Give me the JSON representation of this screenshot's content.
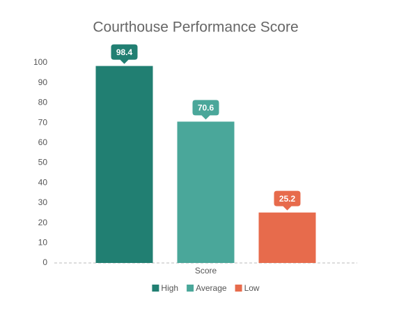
{
  "chart_data": {
    "type": "bar",
    "title": "Courthouse Performance Score",
    "categories": [
      "Score"
    ],
    "series": [
      {
        "name": "High",
        "color": "#217f72",
        "values": [
          98.4
        ]
      },
      {
        "name": "Average",
        "color": "#4aa79a",
        "values": [
          70.6
        ]
      },
      {
        "name": "Low",
        "color": "#e76b4c",
        "values": [
          25.2
        ]
      }
    ],
    "ylim": [
      0,
      100
    ],
    "yticks": [
      0,
      10,
      20,
      30,
      40,
      50,
      60,
      70,
      80,
      90,
      100
    ],
    "grid": false,
    "legend": "bottom"
  }
}
